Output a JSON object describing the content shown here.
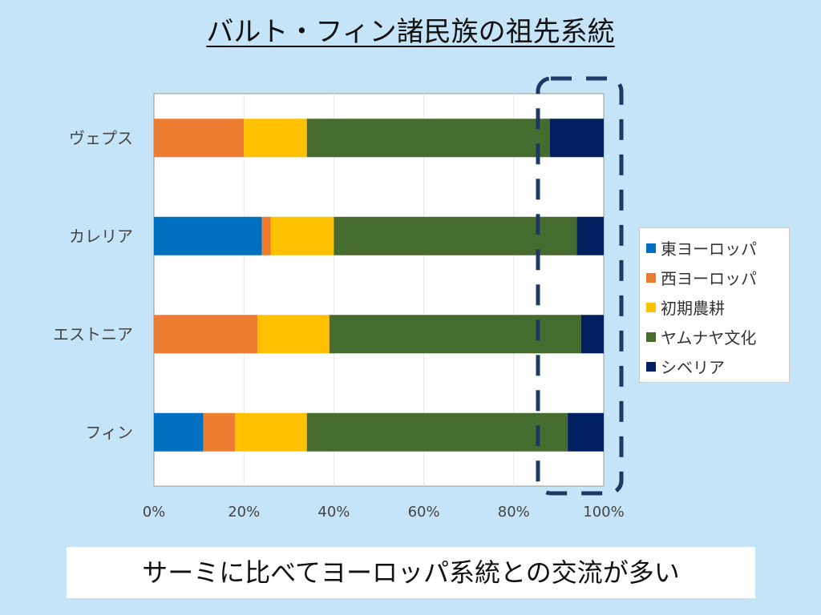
{
  "title": "バルト・フィン諸民族の祖先系統",
  "note": "サーミに比べてヨーロッパ系統との交流が多い",
  "chart_data": {
    "type": "bar",
    "orientation": "horizontal",
    "stacked": "100%",
    "categories": [
      "ヴェプス",
      "カレリア",
      "エストニア",
      "フィン"
    ],
    "series": [
      {
        "name": "東ヨーロッパ",
        "color": "#0070c0",
        "values": [
          0,
          24,
          0,
          11
        ]
      },
      {
        "name": "西ヨーロッパ",
        "color": "#ed7d31",
        "values": [
          20,
          2,
          23,
          7
        ]
      },
      {
        "name": "初期農耕",
        "color": "#ffc000",
        "values": [
          14,
          14,
          16,
          16
        ]
      },
      {
        "name": "ヤムナヤ文化",
        "color": "#466b2e",
        "values": [
          54,
          54,
          56,
          58
        ]
      },
      {
        "name": "シベリア",
        "color": "#002060",
        "values": [
          12,
          6,
          5,
          8
        ]
      }
    ],
    "xlim": [
      0,
      100
    ],
    "xticks": [
      "0%",
      "20%",
      "40%",
      "60%",
      "80%",
      "100%"
    ],
    "grid": true,
    "legend": "right",
    "highlight": "dashed box around 85%–100% range (Siberian component)"
  }
}
